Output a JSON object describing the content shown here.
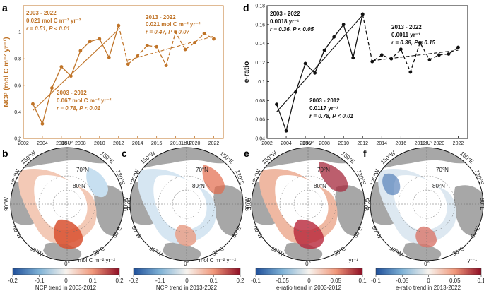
{
  "panels": {
    "a": "a",
    "b": "b",
    "c": "c",
    "d": "d",
    "e": "e",
    "f": "f"
  },
  "colors": {
    "ncp": "#c07428",
    "eratio": "#111111",
    "land": "#a7a7a7",
    "ocean": "#ffffff",
    "cb_neg": "#1f4f9a",
    "cb_mid": "#f7f3ee",
    "cb_pos": "#8f0d24"
  },
  "chart_data": [
    {
      "id": "a",
      "type": "line",
      "title": "",
      "xlabel": "",
      "ylabel": "NCP (mol C m⁻² yr⁻¹)",
      "xlim": [
        2002,
        2023
      ],
      "ylim": [
        0.2,
        1.2
      ],
      "xticks": [
        "2002",
        "2004",
        "2006",
        "2008",
        "2010",
        "2012",
        "2014",
        "2016",
        "2018",
        "2020",
        "2022"
      ],
      "yticks": [
        "0.2",
        "0.4",
        "0.6",
        "0.8",
        "1"
      ],
      "series": [
        {
          "name": "2003-2012",
          "style": "solid",
          "x": [
            2003,
            2004,
            2005,
            2006,
            2007,
            2008,
            2009,
            2010,
            2011,
            2012
          ],
          "values": [
            0.46,
            0.31,
            0.58,
            0.74,
            0.67,
            0.86,
            0.93,
            0.95,
            0.81,
            1.05
          ]
        },
        {
          "name": "2013-2022",
          "style": "dashed",
          "x": [
            2012,
            2013,
            2014,
            2015,
            2016,
            2017,
            2018,
            2019,
            2020,
            2021,
            2022
          ],
          "values": [
            1.05,
            0.76,
            0.82,
            0.9,
            0.89,
            0.75,
            1.0,
            0.87,
            0.92,
            0.99,
            0.95
          ]
        }
      ],
      "trend_lines": [
        {
          "style": "solid",
          "x": [
            2003,
            2012
          ],
          "values": [
            0.41,
            1.02
          ]
        },
        {
          "style": "dashed",
          "x": [
            2013,
            2022
          ],
          "values": [
            0.79,
            0.97
          ]
        }
      ],
      "annotations": [
        {
          "lines": [
            "2003 - 2022",
            "0.021 mol C m⁻² yr⁻²"
          ],
          "stat": "r = 0.51, P < 0.01"
        },
        {
          "lines": [
            "2013 - 2022",
            "0.021 mol C m⁻² yr⁻²"
          ],
          "stat": "r = 0.47, P = 0.07"
        },
        {
          "lines": [
            "2003 - 2012",
            "0.067 mol C m⁻² yr⁻²"
          ],
          "stat": "r = 0.78, P < 0.01"
        }
      ]
    },
    {
      "id": "d",
      "type": "line",
      "title": "",
      "xlabel": "",
      "ylabel": "e-ratio",
      "xlim": [
        2002,
        2023
      ],
      "ylim": [
        0.04,
        0.18
      ],
      "xticks": [
        "2002",
        "2004",
        "2006",
        "2008",
        "2010",
        "2012",
        "2014",
        "2016",
        "2018",
        "2020",
        "2022"
      ],
      "yticks": [
        "0.04",
        "0.06",
        "0.08",
        "0.1",
        "0.12",
        "0.14",
        "0.16",
        "0.18"
      ],
      "series": [
        {
          "name": "2003-2012",
          "style": "solid",
          "x": [
            2003,
            2004,
            2005,
            2006,
            2007,
            2008,
            2009,
            2010,
            2011,
            2012
          ],
          "values": [
            0.076,
            0.048,
            0.089,
            0.119,
            0.109,
            0.133,
            0.147,
            0.16,
            0.125,
            0.171
          ]
        },
        {
          "name": "2013-2022",
          "style": "dashed",
          "x": [
            2012,
            2013,
            2014,
            2015,
            2016,
            2017,
            2018,
            2019,
            2020,
            2021,
            2022
          ],
          "values": [
            0.171,
            0.121,
            0.128,
            0.124,
            0.134,
            0.11,
            0.141,
            0.123,
            0.128,
            0.129,
            0.136
          ]
        }
      ],
      "trend_lines": [
        {
          "style": "solid",
          "x": [
            2003,
            2012
          ],
          "values": [
            0.068,
            0.17
          ]
        },
        {
          "style": "dashed",
          "x": [
            2013,
            2022
          ],
          "values": [
            0.122,
            0.133
          ]
        }
      ],
      "annotations": [
        {
          "lines": [
            "2003 - 2022",
            "0.0018 yr⁻¹"
          ],
          "stat": "r = 0.36, P < 0.05"
        },
        {
          "lines": [
            "2013 - 2022",
            "0.0011 yr⁻¹"
          ],
          "stat": "r = 0.38, P = 0.15"
        },
        {
          "lines": [
            "2003 - 2012",
            "0.0117 yr⁻¹"
          ],
          "stat": "r = 0.78, P < 0.01"
        }
      ]
    }
  ],
  "maps": {
    "labels": {
      "lon_180": "180°",
      "lon_150w": "150°W",
      "lon_150e": "150°E",
      "lon_120w": "120°W",
      "lon_120e": "120°E",
      "lon_90w": "90°W",
      "lon_90e": "90°E",
      "lon_60w": "60°W",
      "lon_60e": "60°E",
      "lon_30w": "30°W",
      "lon_30e": "30°E",
      "lon_0": "0°",
      "lat_70": "70°N",
      "lat_80": "80°N"
    },
    "b": {
      "cb_ticks": [
        "-0.2",
        "-0.1",
        "0",
        "0.1",
        "0.2"
      ],
      "unit": "mol C m⁻² yr⁻²",
      "caption": "NCP trend in 2003-2012"
    },
    "c": {
      "cb_ticks": [
        "-0.2",
        "-0.1",
        "0",
        "0.1",
        "0.2"
      ],
      "unit": "mol C m⁻² yr⁻²",
      "caption": "NCP trend in 2013-2022"
    },
    "e": {
      "cb_ticks": [
        "-0.1",
        "-0.05",
        "0",
        "0.05",
        "0.1"
      ],
      "unit": "yr⁻¹",
      "caption": "e-ratio trend in 2003-2012"
    },
    "f": {
      "cb_ticks": [
        "-0.1",
        "-0.05",
        "0",
        "0.05",
        "0.1"
      ],
      "unit": "yr⁻¹",
      "caption": "e-ratio trend in 2013-2022"
    }
  }
}
